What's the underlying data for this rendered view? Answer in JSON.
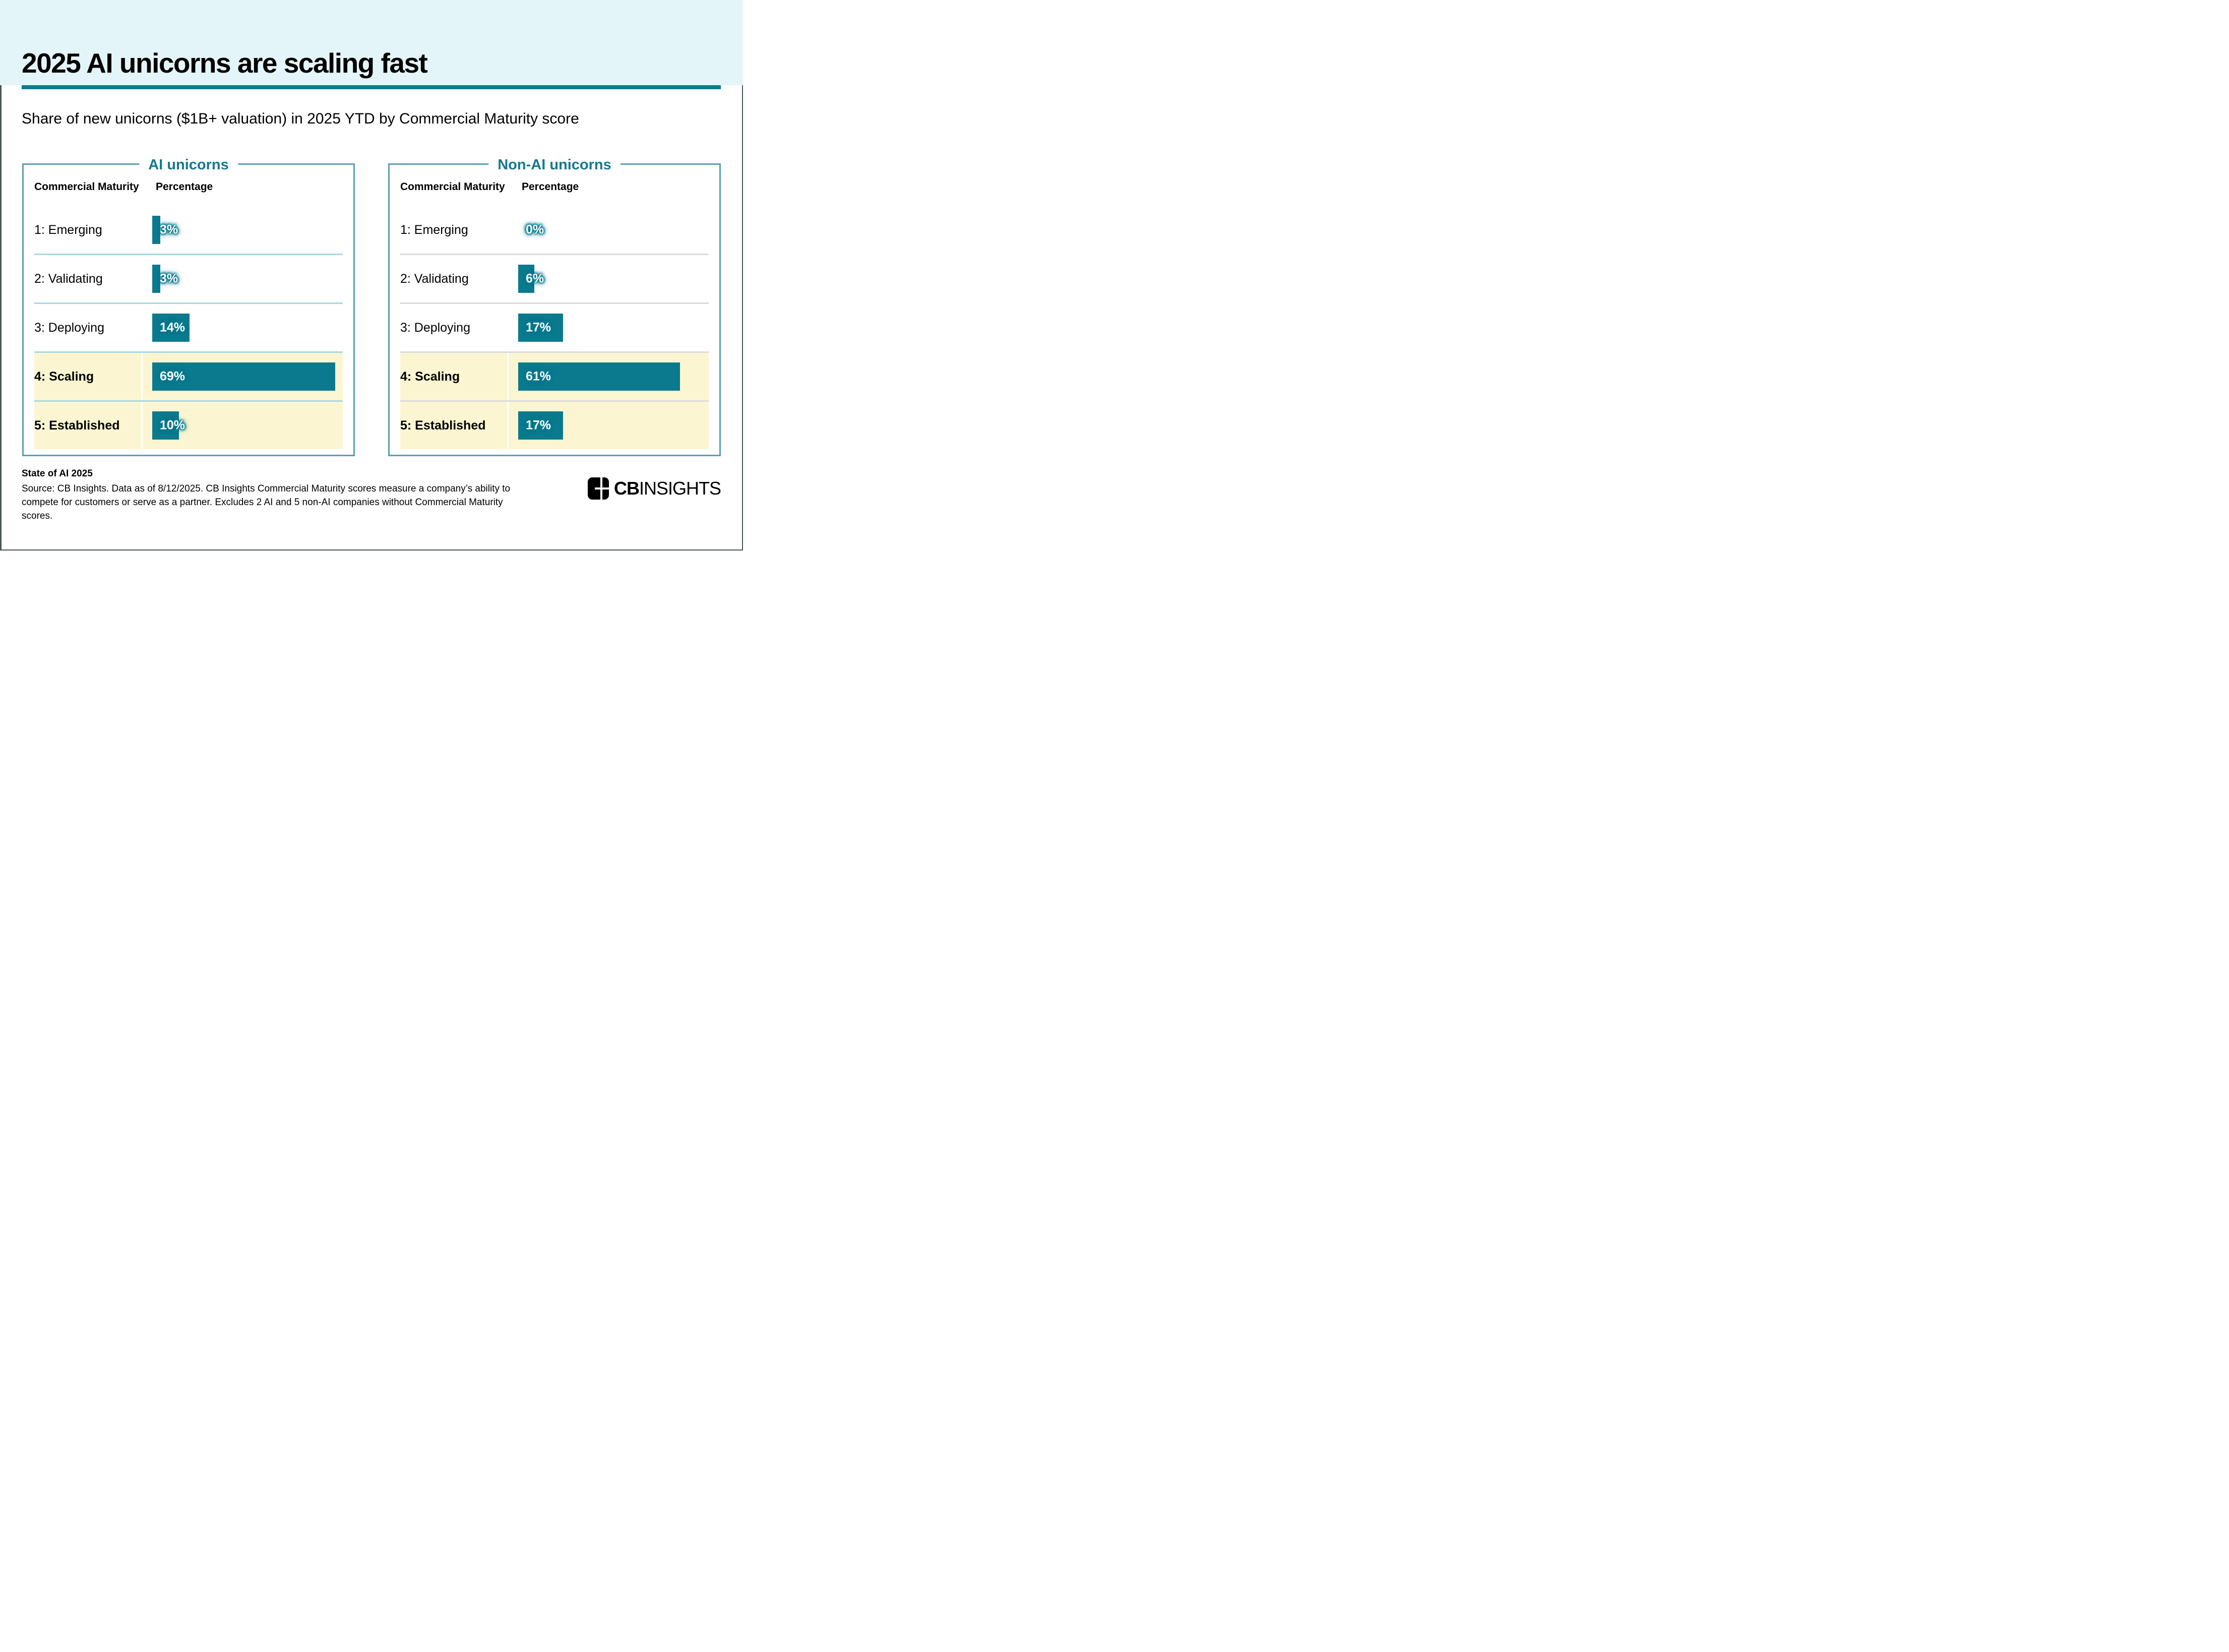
{
  "page": {
    "title": "2025 AI unicorns are scaling fast",
    "subtitle": "Share of new unicorns ($1B+ valuation) in 2025 YTD by Commercial Maturity score"
  },
  "tables": [
    {
      "title": "AI unicorns",
      "col1_header": "Commercial Maturity",
      "col2_header": "Percentage",
      "rows": [
        {
          "label": "1: Emerging",
          "value": 3,
          "pct_label": "3%",
          "highlighted": false
        },
        {
          "label": "2: Validating",
          "value": 3,
          "pct_label": "3%",
          "highlighted": false
        },
        {
          "label": "3: Deploying",
          "value": 14,
          "pct_label": "14%",
          "highlighted": false
        },
        {
          "label": "4: Scaling",
          "value": 69,
          "pct_label": "69%",
          "highlighted": true
        },
        {
          "label": "5: Established",
          "value": 10,
          "pct_label": "10%",
          "highlighted": true
        }
      ]
    },
    {
      "title": "Non-AI unicorns",
      "col1_header": "Commercial Maturity",
      "col2_header": "Percentage",
      "rows": [
        {
          "label": "1: Emerging",
          "value": 0,
          "pct_label": "0%",
          "highlighted": false
        },
        {
          "label": "2: Validating",
          "value": 6,
          "pct_label": "6%",
          "highlighted": false
        },
        {
          "label": "3: Deploying",
          "value": 17,
          "pct_label": "17%",
          "highlighted": false
        },
        {
          "label": "4: Scaling",
          "value": 61,
          "pct_label": "61%",
          "highlighted": true
        },
        {
          "label": "5: Established",
          "value": 17,
          "pct_label": "17%",
          "highlighted": true
        }
      ]
    }
  ],
  "footer": {
    "heading": "State of AI 2025",
    "source": "Source: CB Insights. Data as of 8/12/2025. CB Insights Commercial Maturity scores measure a company’s ability to compete for customers or serve as a partner. Excludes 2 AI and 5 non-AI companies without Commercial Maturity scores."
  },
  "logo": {
    "bold": "CB",
    "rest": "INSIGHTS"
  },
  "colors": {
    "bar": "#0b7a8e",
    "table_title": "#15798f",
    "table_border": "#5c9faf",
    "header_band": "#e4f5fa",
    "divider": "#0f7a8e",
    "highlight_row": "#fbf6d1",
    "separator_left_table": "#abd7e0",
    "separator_right_table": "#dbdbdb"
  },
  "chart_data": [
    {
      "type": "bar",
      "orientation": "horizontal",
      "title": "AI unicorns",
      "xlabel": "Percentage",
      "ylabel": "Commercial Maturity",
      "categories": [
        "1: Emerging",
        "2: Validating",
        "3: Deploying",
        "4: Scaling",
        "5: Established"
      ],
      "values": [
        3,
        3,
        14,
        69,
        10
      ],
      "unit": "%",
      "xlim": [
        0,
        72
      ],
      "grid": false,
      "highlighted_categories": [
        "4: Scaling",
        "5: Established"
      ]
    },
    {
      "type": "bar",
      "orientation": "horizontal",
      "title": "Non-AI unicorns",
      "xlabel": "Percentage",
      "ylabel": "Commercial Maturity",
      "categories": [
        "1: Emerging",
        "2: Validating",
        "3: Deploying",
        "4: Scaling",
        "5: Established"
      ],
      "values": [
        0,
        6,
        17,
        61,
        17
      ],
      "unit": "%",
      "xlim": [
        0,
        72
      ],
      "grid": false,
      "highlighted_categories": [
        "4: Scaling",
        "5: Established"
      ]
    }
  ]
}
